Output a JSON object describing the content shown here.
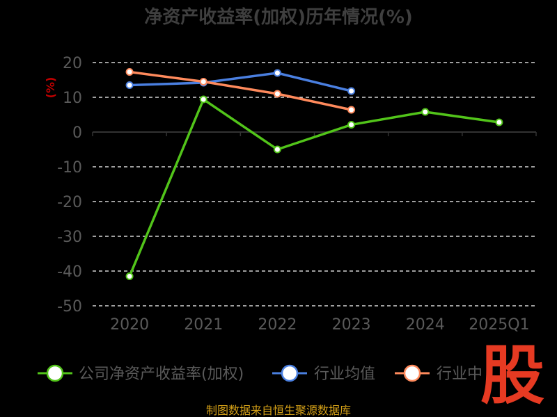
{
  "chart_data": {
    "type": "line",
    "title": "净资产收益率(加权)历年情况(%)",
    "ylabel": "(%)",
    "xlabel": "",
    "categories": [
      "2020",
      "2021",
      "2022",
      "2023",
      "2024",
      "2025Q1"
    ],
    "ylim": [
      -50,
      20
    ],
    "yticks": [
      20,
      10,
      0,
      -10,
      -20,
      -30,
      -40,
      -50
    ],
    "grid": true,
    "legend_position": "bottom",
    "series": [
      {
        "name": "公司净资产收益率(加权)",
        "color": "#52c41a",
        "values": [
          -41.5,
          9.4,
          -5.0,
          2.1,
          5.8,
          2.8
        ]
      },
      {
        "name": "行业均值",
        "color": "#4a7fe0",
        "values": [
          13.5,
          14.2,
          17.0,
          11.8,
          null,
          null
        ]
      },
      {
        "name": "行业中位数",
        "color": "#ff8a5c",
        "values": [
          17.3,
          14.5,
          11.0,
          6.4,
          null,
          null
        ]
      }
    ]
  },
  "legend_labels": [
    "公司净资产收益率(加权)",
    "行业均值",
    "行业中"
  ],
  "source_text": "制图数据来自恒生聚源数据库",
  "watermark_text": "股"
}
